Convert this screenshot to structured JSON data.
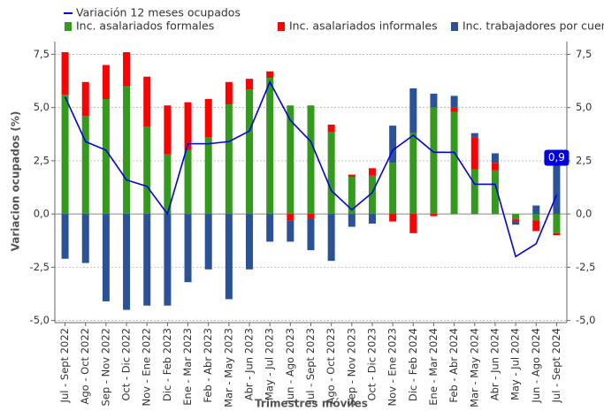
{
  "chart_data": {
    "type": "bar",
    "stacked": true,
    "y_label": "Variacion ocupados (%)",
    "x_label": "Trimestres móviles",
    "categories": [
      "Jul - Sept 2022",
      "Ago - Oct 2022",
      "Sep - Nov 2022",
      "Oct - Dic 2022",
      "Nov - Ene 2022",
      "Dic - Feb 2023",
      "Ene - Mar 2023",
      "Feb - Abr 2023",
      "Mar - May 2023",
      "Abr - Jun 2023",
      "May - Jul 2023",
      "Jun - Ago 2023",
      "Jul - Sept 2023",
      "Ago - Oct 2023",
      "Sep - Nov 2023",
      "Oct - Dic 2023",
      "Nov - Ene 2023",
      "Dic - Feb 2024",
      "Ene - Mar 2024",
      "Feb - Abr 2024",
      "Mar - May 2024",
      "Abr - Jun 2024",
      "May - Jul 2024",
      "Jun - Ago 2024",
      "Jul - Sept 2024"
    ],
    "series": [
      {
        "name": "Variación 12 meses ocupados",
        "type": "line",
        "color": "#0000dd",
        "values": [
          5.5,
          3.4,
          3.0,
          1.6,
          1.3,
          0.0,
          3.3,
          3.3,
          3.4,
          3.9,
          6.2,
          4.4,
          3.4,
          1.1,
          0.2,
          1.0,
          3.0,
          3.7,
          2.9,
          2.9,
          1.4,
          1.4,
          -2.0,
          -1.4,
          0.9
        ],
        "value_labels": [
          null,
          null,
          null,
          null,
          null,
          null,
          null,
          null,
          null,
          null,
          null,
          null,
          null,
          null,
          null,
          null,
          null,
          null,
          null,
          null,
          null,
          null,
          null,
          null,
          "0,9"
        ]
      },
      {
        "name": "Inc. asalariados formales",
        "type": "bar",
        "color": "#339a1e",
        "values": [
          5.6,
          4.6,
          5.4,
          6.0,
          4.1,
          2.8,
          3.0,
          3.6,
          5.15,
          5.85,
          6.4,
          5.1,
          5.1,
          3.85,
          1.75,
          1.8,
          2.4,
          3.8,
          5.0,
          4.8,
          2.1,
          2.05,
          -0.25,
          -0.3,
          -0.9
        ]
      },
      {
        "name": "Inc. asalariados informales",
        "type": "bar",
        "color": "#ff0000",
        "values": [
          2.0,
          1.6,
          1.6,
          1.6,
          2.35,
          2.3,
          2.25,
          1.8,
          1.05,
          0.5,
          0.3,
          -0.3,
          -0.2,
          0.35,
          0.1,
          0.35,
          -0.35,
          -0.9,
          -0.1,
          0.2,
          1.5,
          0.35,
          -0.1,
          -0.5,
          -0.1
        ]
      },
      {
        "name": "Inc. trabajadores por cuenta propia",
        "type": "bar",
        "color": "#2b5196",
        "values": [
          -2.1,
          -2.3,
          -4.1,
          -4.5,
          -4.3,
          -4.3,
          -3.2,
          -2.6,
          -4.0,
          -2.6,
          -1.3,
          -1.0,
          -1.5,
          -2.2,
          -0.6,
          -0.45,
          1.75,
          2.1,
          0.65,
          0.55,
          0.2,
          0.45,
          -0.15,
          0.4,
          2.95
        ]
      }
    ],
    "ylim": [
      -5.1,
      8.1
    ],
    "yticks": [
      {
        "value": -5,
        "label": "-5,0"
      },
      {
        "value": -2.5,
        "label": "-2,5"
      },
      {
        "value": 0,
        "label": "0,0"
      },
      {
        "value": 2.5,
        "label": "2,5"
      },
      {
        "value": 5,
        "label": "5,0"
      },
      {
        "value": 7.5,
        "label": "7,5"
      }
    ],
    "grid": true
  }
}
